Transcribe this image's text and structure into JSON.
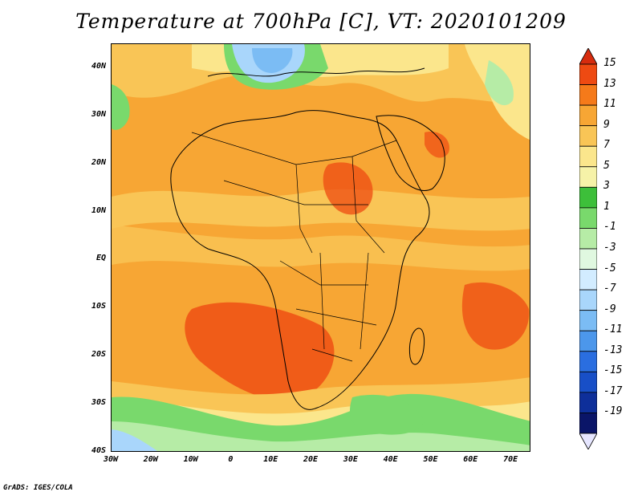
{
  "title": "Temperature at 700hPa [C], VT: 2020101209",
  "credit": "GrADS: IGES/COLA",
  "map": {
    "lon_range": [
      -30,
      75
    ],
    "lat_range": [
      -40,
      45
    ],
    "lat_ticks": [
      {
        "value": 40,
        "label": "40N"
      },
      {
        "value": 30,
        "label": "30N"
      },
      {
        "value": 20,
        "label": "20N"
      },
      {
        "value": 10,
        "label": "10N"
      },
      {
        "value": 0,
        "label": "EQ"
      },
      {
        "value": -10,
        "label": "10S"
      },
      {
        "value": -20,
        "label": "20S"
      },
      {
        "value": -30,
        "label": "30S"
      },
      {
        "value": -40,
        "label": "40S"
      }
    ],
    "lon_ticks": [
      {
        "value": -30,
        "label": "30W"
      },
      {
        "value": -20,
        "label": "20W"
      },
      {
        "value": -10,
        "label": "10W"
      },
      {
        "value": 0,
        "label": "0"
      },
      {
        "value": 10,
        "label": "10E"
      },
      {
        "value": 20,
        "label": "20E"
      },
      {
        "value": 30,
        "label": "30E"
      },
      {
        "value": 40,
        "label": "40E"
      },
      {
        "value": 50,
        "label": "50E"
      },
      {
        "value": 60,
        "label": "60E"
      },
      {
        "value": 70,
        "label": "70E"
      }
    ]
  },
  "colorbar": {
    "labels": [
      "15",
      "13",
      "11",
      "9",
      "7",
      "5",
      "3",
      "1",
      "-1",
      "-3",
      "-5",
      "-7",
      "-9",
      "-11",
      "-13",
      "-15",
      "-17",
      "-19"
    ],
    "colors_top_to_bottom": [
      "#d62c0e",
      "#ee4a12",
      "#f57a1a",
      "#f7a634",
      "#f9c556",
      "#fbe68c",
      "#f6f2a8",
      "#3dbf3a",
      "#79d96c",
      "#b6eca6",
      "#e0f8e0",
      "#d2ecff",
      "#a9d6fb",
      "#7bbcf4",
      "#4c97eb",
      "#2a6ee0",
      "#184fc7",
      "#0e2f9a",
      "#0a1568",
      "#e6e6ff"
    ]
  },
  "colors": {
    "warm_max": "#e84a18",
    "orange": "#f7a634",
    "light_orange": "#f9c556",
    "yellow": "#fbe68c",
    "green": "#79d96c",
    "light_green": "#b6eca6",
    "light_blue": "#a9d6fb",
    "blue": "#7bbcf4"
  }
}
